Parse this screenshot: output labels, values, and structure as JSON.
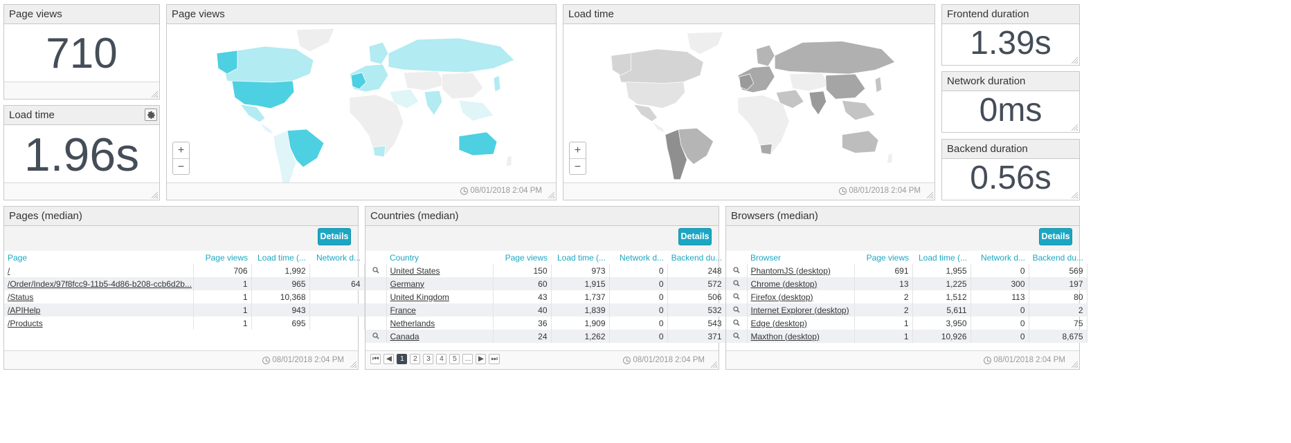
{
  "kpi_page_views": {
    "title": "Page views",
    "value": "710"
  },
  "kpi_load_time": {
    "title": "Load time",
    "value": "1.96s"
  },
  "map_page_views": {
    "title": "Page views",
    "timestamp": "08/01/2018 2:04 PM",
    "zoom_in": "+",
    "zoom_out": "−"
  },
  "map_load_time": {
    "title": "Load time",
    "timestamp": "08/01/2018 2:04 PM",
    "zoom_in": "+",
    "zoom_out": "−"
  },
  "kpi_frontend": {
    "title": "Frontend duration",
    "value": "1.39s"
  },
  "kpi_network": {
    "title": "Network duration",
    "value": "0ms"
  },
  "kpi_backend": {
    "title": "Backend duration",
    "value": "0.56s"
  },
  "pages": {
    "title": "Pages (median)",
    "details_label": "Details",
    "timestamp": "08/01/2018 2:04 PM",
    "columns": [
      "Page",
      "Page views",
      "Load time (...",
      "Network d..."
    ],
    "rows": [
      [
        "/",
        "706",
        "1,992",
        ""
      ],
      [
        "/Order/Index/97f8fcc9-11b5-4d86-b208-ccb6d2b...",
        "1",
        "965",
        "64"
      ],
      [
        "/Status",
        "1",
        "10,368",
        ""
      ],
      [
        "/APIHelp",
        "1",
        "943",
        ""
      ],
      [
        "/Products",
        "1",
        "695",
        ""
      ]
    ]
  },
  "countries": {
    "title": "Countries (median)",
    "details_label": "Details",
    "timestamp": "08/01/2018 2:04 PM",
    "columns": [
      "Country",
      "Page views",
      "Load time (...",
      "Network d...",
      "Backend du..."
    ],
    "rows": [
      [
        "United States",
        "150",
        "973",
        "0",
        "248"
      ],
      [
        "Germany",
        "60",
        "1,915",
        "0",
        "572"
      ],
      [
        "United Kingdom",
        "43",
        "1,737",
        "0",
        "506"
      ],
      [
        "France",
        "40",
        "1,839",
        "0",
        "532"
      ],
      [
        "Netherlands",
        "36",
        "1,909",
        "0",
        "543"
      ],
      [
        "Canada",
        "24",
        "1,262",
        "0",
        "371"
      ]
    ],
    "row_has_magnifier": [
      true,
      false,
      false,
      false,
      false,
      true
    ],
    "pager": {
      "first": "⏮",
      "prev": "◀",
      "pages": [
        "1",
        "2",
        "3",
        "4",
        "5",
        "..."
      ],
      "next": "▶",
      "last": "⏭"
    }
  },
  "browsers": {
    "title": "Browsers (median)",
    "details_label": "Details",
    "timestamp": "08/01/2018 2:04 PM",
    "columns": [
      "Browser",
      "Page views",
      "Load time (...",
      "Network d...",
      "Backend du..."
    ],
    "rows": [
      [
        "PhantomJS (desktop)",
        "691",
        "1,955",
        "0",
        "569"
      ],
      [
        "Chrome (desktop)",
        "13",
        "1,225",
        "300",
        "197"
      ],
      [
        "Firefox (desktop)",
        "2",
        "1,512",
        "113",
        "80"
      ],
      [
        "Internet Explorer (desktop)",
        "2",
        "5,611",
        "0",
        "2"
      ],
      [
        "Edge (desktop)",
        "1",
        "3,950",
        "0",
        "75"
      ],
      [
        "Maxthon (desktop)",
        "1",
        "10,926",
        "0",
        "8,675"
      ]
    ]
  },
  "colors": {
    "accent": "#1ba7c4",
    "kpi_text": "#444d58",
    "map_pv_strong": "#4dd0e1",
    "map_pv_light": "#b2ebf2",
    "map_lt_dark": "#8f8f8f",
    "map_lt_light": "#d4d4d4"
  }
}
